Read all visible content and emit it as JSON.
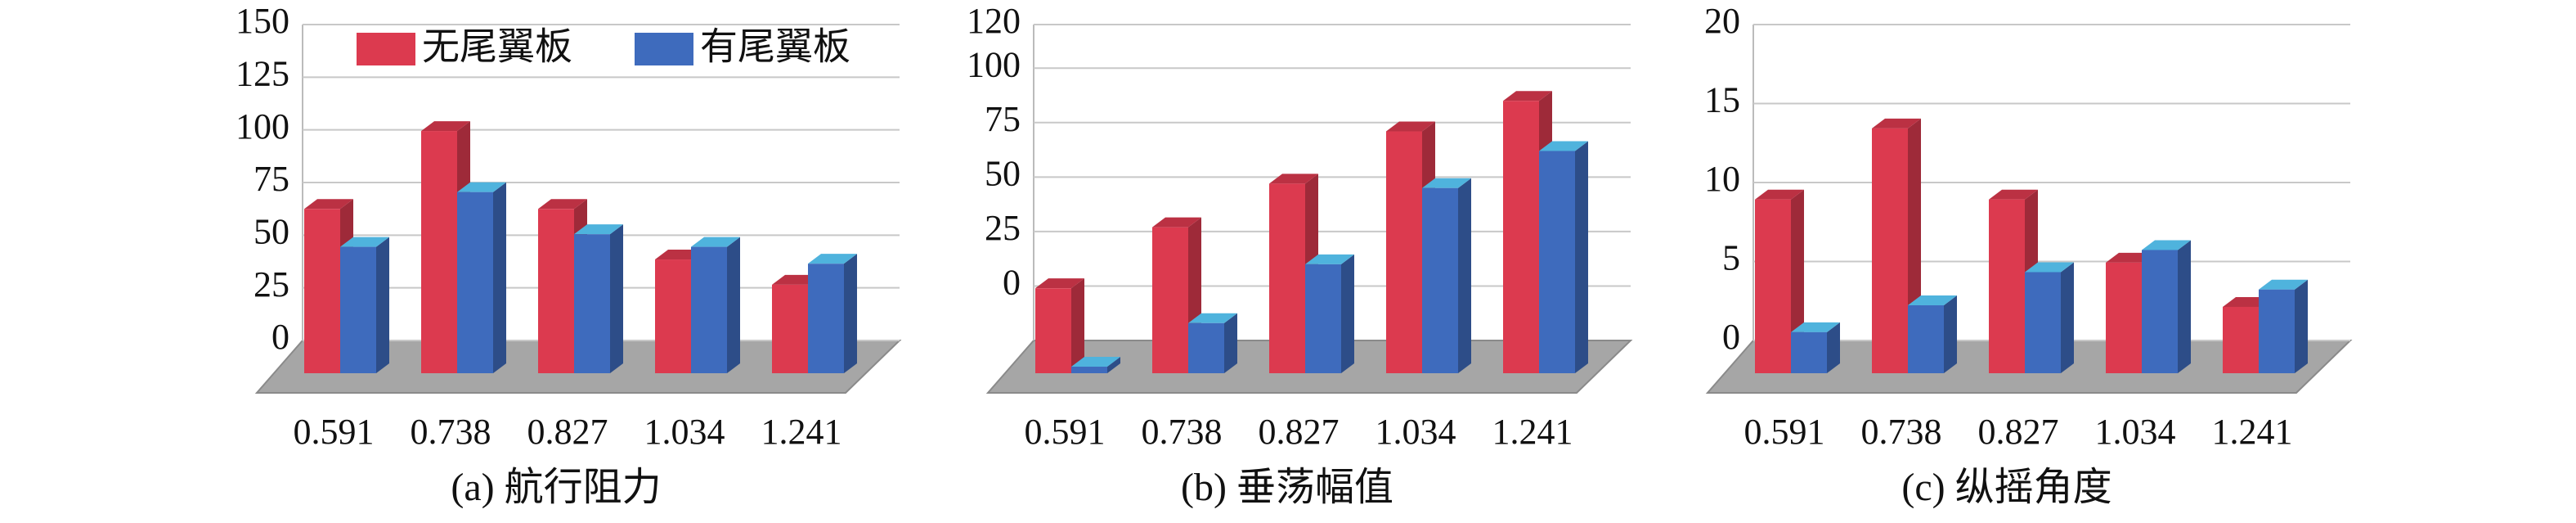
{
  "chart_data": [
    {
      "type": "bar3d",
      "caption": "(a) 航行阻力",
      "categories": [
        "0.591",
        "0.738",
        "0.827",
        "1.034",
        "1.241"
      ],
      "series": [
        {
          "name": "无尾翼板",
          "color": "#dc3a4f",
          "values": [
            78,
            115,
            78,
            54,
            42
          ]
        },
        {
          "name": "有尾翼板",
          "color": "#3e6bbd",
          "values": [
            60,
            86,
            66,
            60,
            52
          ]
        }
      ],
      "ylim": [
        0,
        150
      ],
      "yticks": [
        0,
        25,
        50,
        75,
        100,
        125,
        150
      ],
      "grid": true,
      "legend": "top"
    },
    {
      "type": "bar3d",
      "caption": "(b) 垂荡幅值",
      "categories": [
        "0.591",
        "0.738",
        "0.827",
        "1.034",
        "1.241"
      ],
      "series": [
        {
          "color": "#dc3a4f",
          "values": [
            14,
            42,
            62,
            86,
            100
          ]
        },
        {
          "color": "#3e6bbd",
          "values": [
            -22,
            -2,
            25,
            60,
            77
          ]
        }
      ],
      "ylim": [
        -25,
        120
      ],
      "yticks": [
        0,
        25,
        50,
        75,
        100,
        120
      ],
      "grid": true
    },
    {
      "type": "bar3d",
      "caption": "(c) 纵摇角度",
      "categories": [
        "0.591",
        "0.738",
        "0.827",
        "1.034",
        "1.241"
      ],
      "series": [
        {
          "color": "#dc3a4f",
          "values": [
            11,
            15.5,
            11,
            7,
            4.2
          ]
        },
        {
          "color": "#3e6bbd",
          "values": [
            2.6,
            4.3,
            6.4,
            7.8,
            5.3
          ]
        }
      ],
      "ylim": [
        0,
        20
      ],
      "yticks": [
        0,
        5,
        10,
        15,
        20
      ],
      "grid": true
    }
  ]
}
